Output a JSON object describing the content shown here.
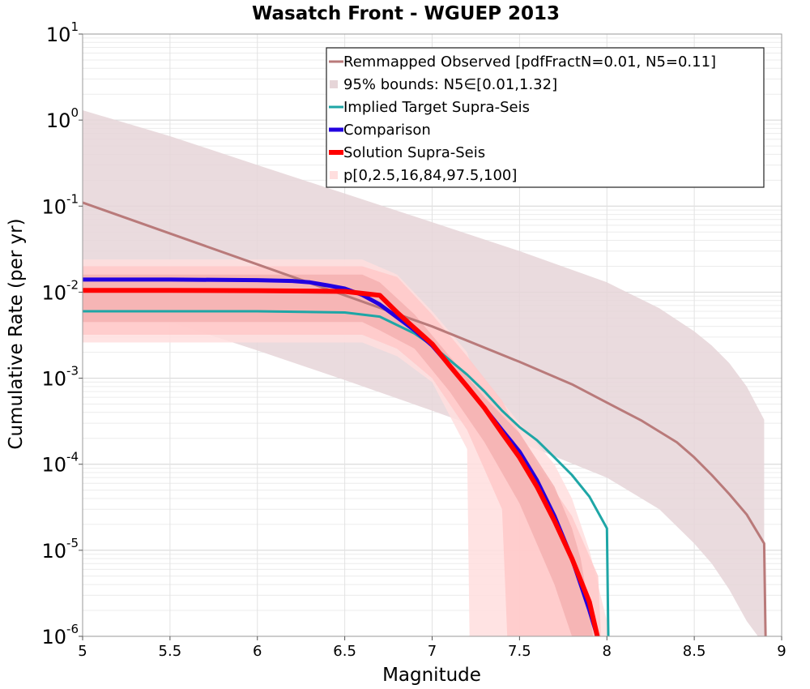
{
  "chart_data": {
    "type": "line",
    "title": "Wasatch Front - WGUEP 2013",
    "xlabel": "Magnitude",
    "ylabel": "Cumulative Rate (per yr)",
    "xlim": [
      5,
      9
    ],
    "ylim": [
      1e-06,
      10
    ],
    "yscale": "log",
    "grid": true,
    "legend_position": "top-right",
    "x_ticks": [
      "5",
      "5.5",
      "6",
      "6.5",
      "7",
      "7.5",
      "8",
      "8.5",
      "9"
    ],
    "y_ticks": [
      {
        "base": "10",
        "exp": "1"
      },
      {
        "base": "10",
        "exp": "0"
      },
      {
        "base": "10",
        "exp": "-1"
      },
      {
        "base": "10",
        "exp": "-2"
      },
      {
        "base": "10",
        "exp": "-3"
      },
      {
        "base": "10",
        "exp": "-4"
      },
      {
        "base": "10",
        "exp": "-5"
      },
      {
        "base": "10",
        "exp": "-6"
      }
    ],
    "bands": [
      {
        "name": "95% bounds: N5∈[0.01,1.32]",
        "color": "#e6d5d8",
        "x": [
          5.0,
          5.5,
          6.0,
          6.5,
          7.0,
          7.5,
          8.0,
          8.3,
          8.5,
          8.6,
          8.7,
          8.8,
          8.9
        ],
        "upper": [
          1.3,
          0.65,
          0.3,
          0.14,
          0.065,
          0.03,
          0.013,
          0.0065,
          0.0035,
          0.0024,
          0.0015,
          0.0008,
          0.00033
        ],
        "lower": [
          0.0095,
          0.0045,
          0.0021,
          0.00095,
          0.00042,
          0.00018,
          7e-05,
          3e-05,
          1.2e-05,
          7e-06,
          3.5e-06,
          1.5e-06,
          8e-07
        ]
      },
      {
        "name": "p[0,2.5,16,84,97.5,100] (0-100)",
        "color": "#ffdede",
        "x": [
          5.0,
          6.6,
          6.8,
          7.0,
          7.2,
          7.22,
          7.5,
          7.7,
          7.8,
          7.9,
          8.0,
          8.02
        ],
        "upper": [
          0.024,
          0.024,
          0.016,
          0.006,
          0.002,
          0.0015,
          0.0003,
          0.0001,
          4e-05,
          1e-05,
          1.5e-06,
          1e-07
        ],
        "lower": [
          0.0026,
          0.0026,
          0.0018,
          0.0009,
          0.00015,
          1e-07,
          1e-07,
          1e-07,
          1e-07,
          1e-07,
          1e-07,
          1e-07
        ]
      },
      {
        "name": "p[0,2.5,16,84,97.5,100] (2.5-97.5)",
        "color": "#ffc9c9",
        "x": [
          5.0,
          6.6,
          6.8,
          7.0,
          7.2,
          7.4,
          7.45,
          7.6,
          7.8,
          7.95,
          7.99
        ],
        "upper": [
          0.02,
          0.02,
          0.015,
          0.0055,
          0.0018,
          0.00055,
          0.00035,
          0.0001,
          2.5e-05,
          5e-06,
          1e-07
        ],
        "lower": [
          0.0032,
          0.0032,
          0.0022,
          0.001,
          0.00025,
          3e-05,
          1e-07,
          1e-07,
          1e-07,
          1e-07,
          1e-07
        ]
      },
      {
        "name": "p[0,2.5,16,84,97.5,100] (16-84)",
        "color": "#f5b0b0",
        "x": [
          5.0,
          6.6,
          6.7,
          6.9,
          7.1,
          7.3,
          7.5,
          7.7,
          7.8,
          7.85,
          7.9,
          7.99
        ],
        "upper": [
          0.016,
          0.016,
          0.013,
          0.0055,
          0.0018,
          0.0006,
          0.00023,
          5.5e-05,
          1.8e-05,
          8e-06,
          2e-06,
          1e-07
        ],
        "lower": [
          0.0045,
          0.0045,
          0.0036,
          0.0022,
          0.0007,
          0.00018,
          3.5e-05,
          4e-06,
          1e-06,
          1e-07,
          1e-07,
          1e-07
        ]
      }
    ],
    "series": [
      {
        "name": "Remmapped Observed [pdfFractN=0.01, N5=0.11]",
        "color": "#b97a7a",
        "width": 3,
        "x": [
          5.0,
          5.5,
          6.0,
          6.5,
          7.0,
          7.5,
          7.8,
          8.0,
          8.2,
          8.4,
          8.5,
          8.6,
          8.7,
          8.8,
          8.9,
          8.91
        ],
        "y": [
          0.11,
          0.048,
          0.021,
          0.0092,
          0.004,
          0.00155,
          0.00085,
          0.00052,
          0.00032,
          0.00018,
          0.00012,
          7.5e-05,
          4.5e-05,
          2.6e-05,
          1.2e-05,
          5e-07
        ]
      },
      {
        "name": "Implied Target Supra-Seis",
        "color": "#1ea6a6",
        "width": 3,
        "x": [
          5.0,
          5.5,
          6.0,
          6.5,
          6.7,
          6.9,
          7.0,
          7.2,
          7.3,
          7.4,
          7.5,
          7.6,
          7.7,
          7.8,
          7.9,
          8.0,
          8.01
        ],
        "y": [
          0.006,
          0.006,
          0.006,
          0.0058,
          0.0052,
          0.0033,
          0.0024,
          0.0011,
          0.0007,
          0.00042,
          0.00027,
          0.00019,
          0.00012,
          7.5e-05,
          4.2e-05,
          1.8e-05,
          5e-07
        ]
      },
      {
        "name": "Comparison",
        "color": "#2200e0",
        "width": 5,
        "x": [
          5.0,
          5.5,
          6.0,
          6.2,
          6.3,
          6.4,
          6.5,
          6.6,
          6.7,
          6.8,
          6.9,
          7.0,
          7.1,
          7.2,
          7.3,
          7.4,
          7.5,
          7.6,
          7.7,
          7.8,
          7.9,
          7.99
        ],
        "y": [
          0.014,
          0.014,
          0.0138,
          0.0135,
          0.013,
          0.012,
          0.011,
          0.0093,
          0.0072,
          0.0051,
          0.0036,
          0.0024,
          0.0014,
          0.0008,
          0.00045,
          0.00025,
          0.00014,
          6.5e-05,
          2.5e-05,
          8e-06,
          2e-06,
          5e-07
        ]
      },
      {
        "name": "Solution Supra-Seis",
        "color": "#ff0000",
        "width": 6,
        "x": [
          5.0,
          5.5,
          6.0,
          6.5,
          6.7,
          6.8,
          6.9,
          7.0,
          7.1,
          7.2,
          7.3,
          7.4,
          7.5,
          7.6,
          7.7,
          7.8,
          7.9,
          7.98
        ],
        "y": [
          0.0105,
          0.0105,
          0.0104,
          0.0102,
          0.0092,
          0.0058,
          0.0038,
          0.0025,
          0.0014,
          0.0008,
          0.00045,
          0.00023,
          0.00012,
          5.5e-05,
          2.2e-05,
          8e-06,
          2.5e-06,
          5e-07
        ]
      }
    ],
    "legend": [
      {
        "label": "Remmapped Observed [pdfFractN=0.01, N5=0.11]",
        "type": "line",
        "color": "#b97a7a",
        "width": 3
      },
      {
        "label": "95% bounds: N5∈[0.01,1.32]",
        "type": "patch",
        "color": "#e6d5d8"
      },
      {
        "label": "Implied Target Supra-Seis",
        "type": "line",
        "color": "#1ea6a6",
        "width": 3
      },
      {
        "label": "Comparison",
        "type": "line",
        "color": "#2200e0",
        "width": 5
      },
      {
        "label": "Solution Supra-Seis",
        "type": "line",
        "color": "#ff0000",
        "width": 6
      },
      {
        "label": "p[0,2.5,16,84,97.5,100]",
        "type": "patch",
        "color": "#ffdede"
      }
    ]
  }
}
